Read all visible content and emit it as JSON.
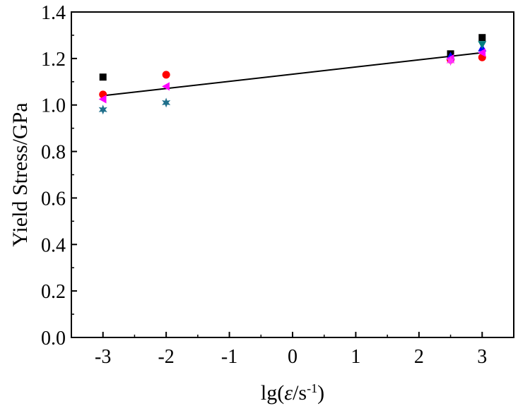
{
  "chart_data": {
    "type": "scatter",
    "xlabel_parts": {
      "prefix": "lg(",
      "symbol": "ε",
      "middle": "/s",
      "exponent": "-1",
      "suffix": ")"
    },
    "ylabel": "Yield Stress/GPa",
    "xlim": [
      -3.5,
      3.5
    ],
    "ylim": [
      0.0,
      1.4
    ],
    "x_ticks": [
      -3,
      -2,
      -1,
      0,
      1,
      2,
      3
    ],
    "x_tick_labels": [
      "-3",
      "-2",
      "-1",
      "0",
      "1",
      "2",
      "3"
    ],
    "y_ticks": [
      0.0,
      0.2,
      0.4,
      0.6,
      0.8,
      1.0,
      1.2,
      1.4
    ],
    "y_tick_labels": [
      "0.0",
      "0.2",
      "0.4",
      "0.6",
      "0.8",
      "1.0",
      "1.2",
      "1.4"
    ],
    "grid": false,
    "series": [
      {
        "marker": "square",
        "color": "#000000",
        "points": [
          [
            -3,
            1.12
          ],
          [
            2.5,
            1.22
          ],
          [
            3,
            1.29
          ]
        ]
      },
      {
        "marker": "circle",
        "color": "#ff0000",
        "points": [
          [
            -3,
            1.045
          ],
          [
            -2,
            1.13
          ],
          [
            2.5,
            1.195
          ],
          [
            3,
            1.205
          ]
        ]
      },
      {
        "marker": "triangle-up",
        "color": "#0000ff",
        "points": [
          [
            2.5,
            1.21
          ],
          [
            3,
            1.245
          ]
        ]
      },
      {
        "marker": "triangle-down",
        "color": "#008080",
        "points": [
          [
            3,
            1.26
          ]
        ]
      },
      {
        "marker": "triangle-left",
        "color": "#ff00ff",
        "points": [
          [
            -3,
            1.025
          ],
          [
            -2,
            1.08
          ],
          [
            2.5,
            1.2
          ],
          [
            3,
            1.225
          ]
        ]
      },
      {
        "marker": "star",
        "color": "#1f6f8b",
        "points": [
          [
            -3,
            0.98
          ],
          [
            -2,
            1.01
          ]
        ]
      },
      {
        "marker": "star",
        "color": "#ff33ff",
        "points": [
          [
            2.5,
            1.19
          ]
        ]
      }
    ],
    "fit_line": {
      "color": "#000000",
      "points": [
        [
          -3,
          1.04
        ],
        [
          3,
          1.225
        ]
      ]
    }
  }
}
